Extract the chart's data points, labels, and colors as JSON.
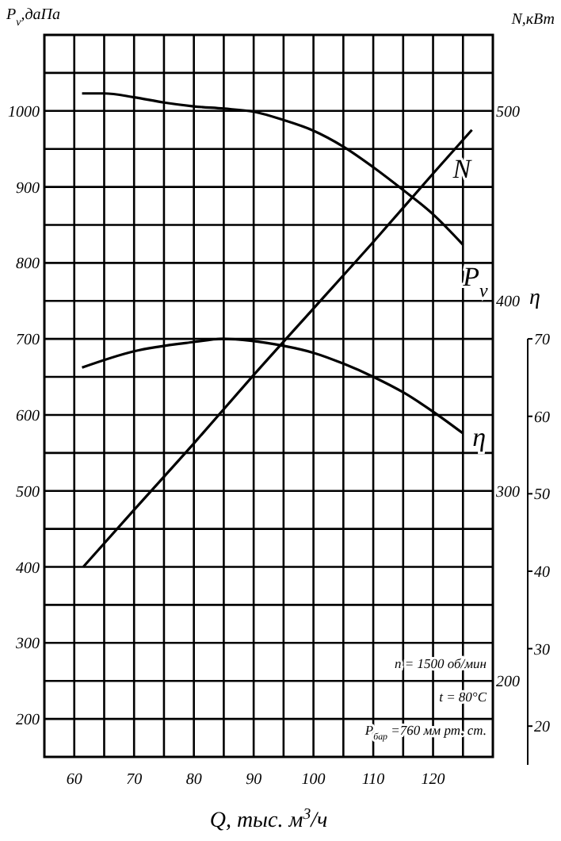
{
  "chart_data": {
    "type": "line",
    "xlabel": "Q, тыс. м$^{3}$/ч",
    "ylabel": "P$_{v}$,даПа",
    "y2label": "N,кВт",
    "y3label": "η",
    "xlim": [
      55,
      130
    ],
    "xticks": [
      60,
      {
        "value": 65,
        "label": null
      },
      70,
      {
        "value": 75,
        "label": null
      },
      80,
      {
        "value": 85,
        "label": null
      },
      90,
      {
        "value": 95,
        "label": null
      },
      100,
      {
        "value": 105,
        "label": null
      },
      110,
      {
        "value": 115,
        "label": null
      },
      120,
      {
        "value": 125,
        "label": null
      }
    ],
    "ylim": [
      150,
      1100
    ],
    "yticks": [
      200,
      {
        "value": 250,
        "label": null
      },
      300,
      {
        "value": 350,
        "label": null
      },
      400,
      {
        "value": 450,
        "label": null
      },
      500,
      {
        "value": 550,
        "label": null
      },
      600,
      {
        "value": 650,
        "label": null
      },
      700,
      {
        "value": 750,
        "label": null
      },
      800,
      {
        "value": 850,
        "label": null
      },
      900,
      {
        "value": 950,
        "label": null
      },
      1000,
      {
        "value": 1050,
        "label": null
      }
    ],
    "y2lim": [
      160,
      540
    ],
    "y2ticks": [
      200,
      300,
      400,
      500
    ],
    "y3lim": [
      15,
      70
    ],
    "y3ticks": [
      20,
      30,
      40,
      50,
      60,
      70
    ],
    "grid": true,
    "marker": "none",
    "line_style": "solid",
    "series": [
      {
        "name": "P$_{v}$",
        "color": "#000000",
        "x": [
          61.3,
          65,
          70,
          75,
          80,
          85,
          90,
          95,
          100,
          105,
          110,
          115,
          120,
          125
        ],
        "values": [
          1023,
          1023,
          1018,
          1011,
          1006,
          1003,
          999,
          988,
          974,
          953,
          926,
          896,
          864,
          824
        ]
      },
      {
        "name": "N",
        "color": "#000000",
        "axis": "y2",
        "x": [
          61.5,
          70,
          80,
          90,
          100,
          110,
          120,
          126.5
        ],
        "values": [
          260,
          290,
          325,
          361,
          396,
          431,
          467,
          490
        ]
      },
      {
        "name": "η",
        "color": "#000000",
        "axis": "y3",
        "x": [
          61.3,
          70,
          80,
          84.7,
          95,
          100,
          105,
          110,
          115,
          120,
          125
        ],
        "values": [
          66.3,
          68.4,
          69.6,
          70,
          69.1,
          68.2,
          66.8,
          65.1,
          63.1,
          60.6,
          57.8
        ]
      }
    ],
    "annotations": [
      "n = 1500 об/мин",
      "t = 80°C",
      "P$_{бар}$ =760 мм рт. ст."
    ]
  }
}
